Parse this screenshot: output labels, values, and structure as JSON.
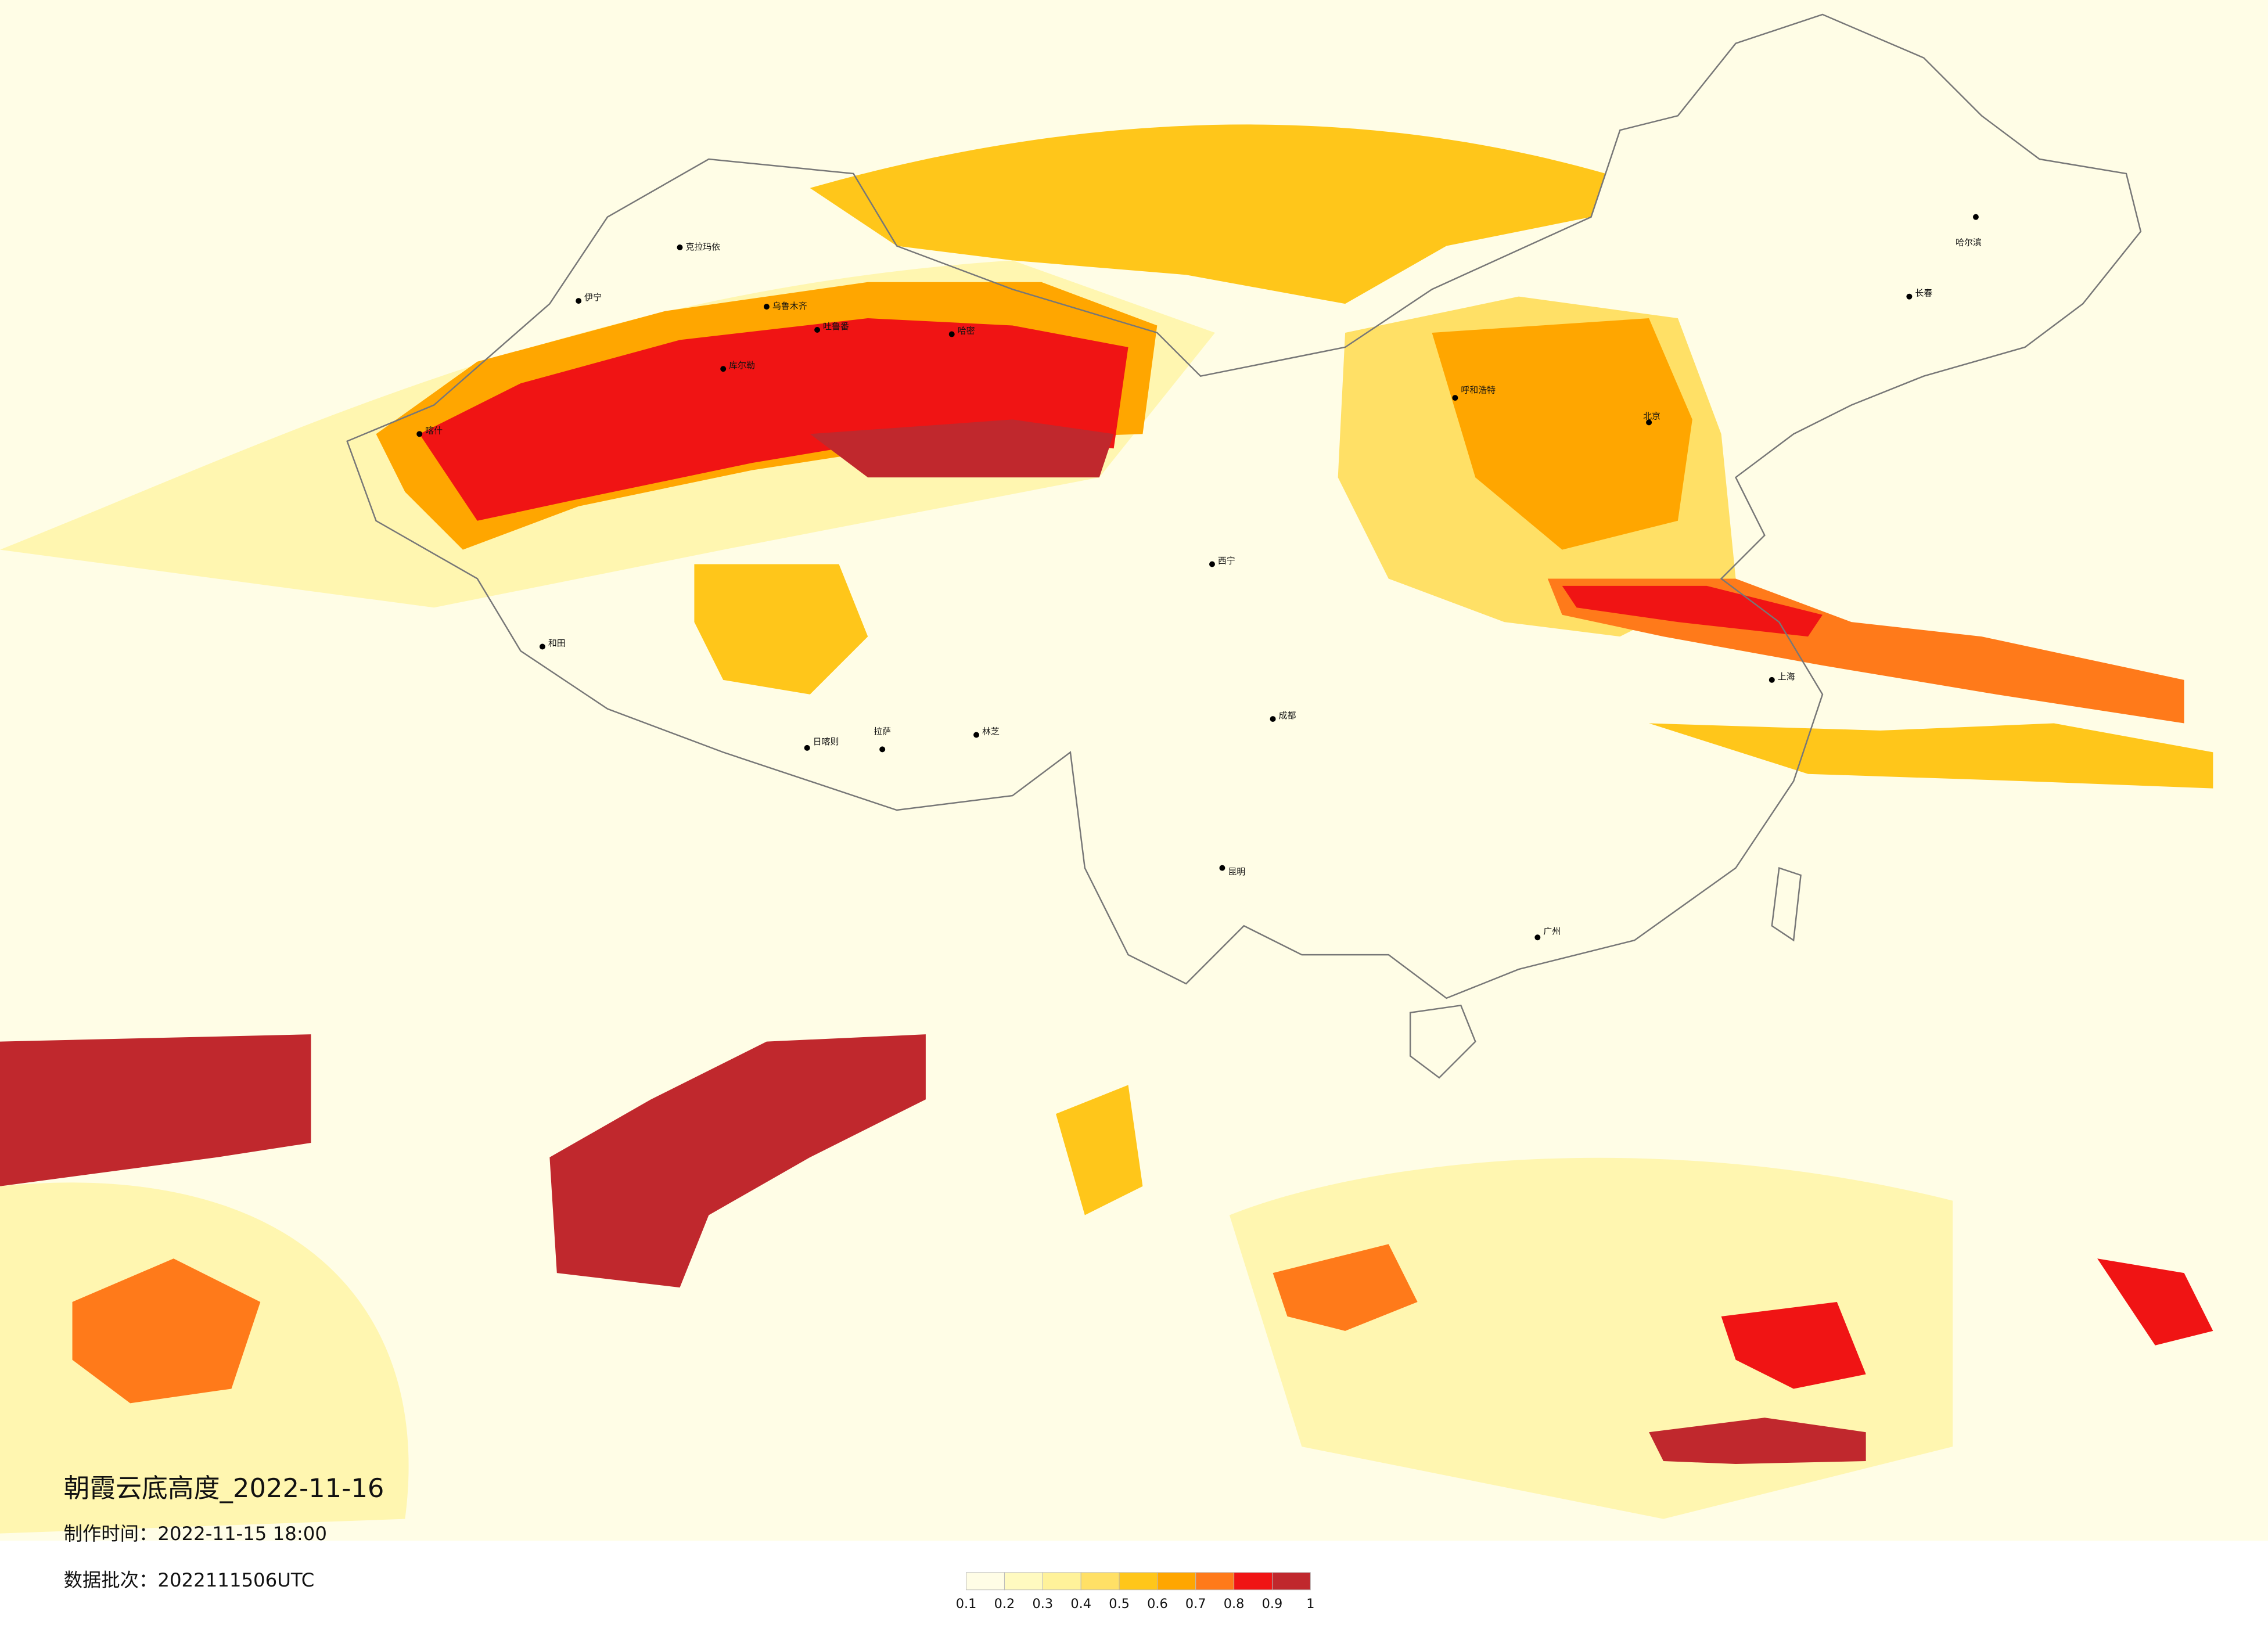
{
  "title": "朝霞云底高度_2022-11-16",
  "production_time": "制作时间：2022-11-15 18:00",
  "data_batch": "数据批次：2022111506UTC",
  "legend": {
    "ticks": [
      0.1,
      0.2,
      0.3,
      0.4,
      0.5,
      0.6,
      0.7,
      0.8,
      0.9,
      1
    ],
    "colors": [
      "#fffde6",
      "#fffac0",
      "#fff29a",
      "#ffe066",
      "#ffc61a",
      "#ffa600",
      "#ff7a1a",
      "#f01414",
      "#c0282d"
    ]
  },
  "cities": [
    "克拉玛依",
    "乌鲁木齐",
    "伊宁",
    "哈密",
    "吐鲁番",
    "库尔勒",
    "喀什",
    "和田",
    "拉萨",
    "日喀则",
    "林芝",
    "西宁",
    "呼和浩特",
    "北京",
    "上海",
    "成都",
    "昆明",
    "广州",
    "哈尔滨",
    "长春"
  ]
}
